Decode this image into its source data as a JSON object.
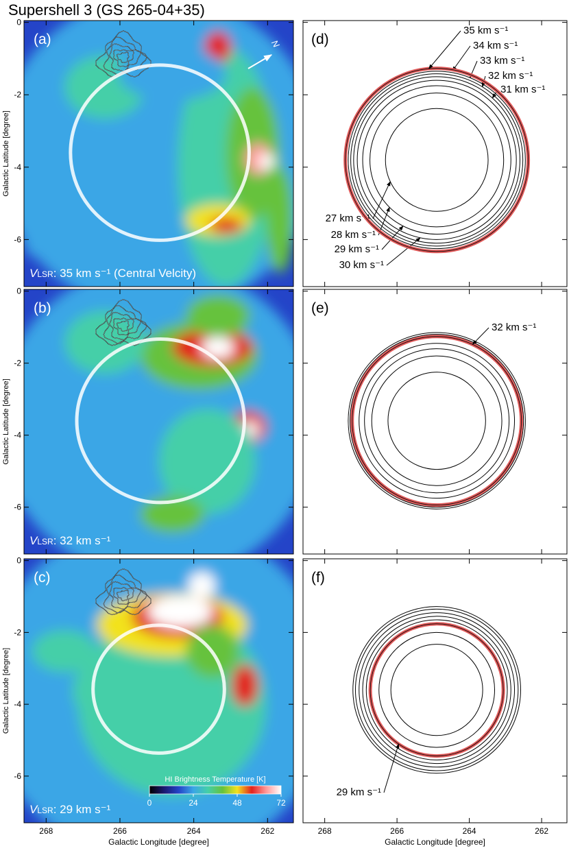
{
  "chart_data": {
    "type": "shell-maps",
    "title": "Supershell 3 (GS 265-04+35)",
    "x_label": "Galactic Longitude [degree]",
    "y_label": "Galactic Latitude [degree]",
    "xlim": [
      268.6,
      261.3
    ],
    "xticks": [
      268,
      266,
      264,
      262
    ],
    "ylim": [
      -7.3,
      0.05
    ],
    "yticks": [
      0,
      -2,
      -4,
      -6
    ],
    "north_label": "N",
    "maps": [
      {
        "label": "(a)",
        "velocity": {
          "symbol": "V",
          "subscript": "LSR",
          "text": ": 35 km s⁻¹ (Central Velcity)"
        },
        "shell": {
          "center": [
            264.92,
            -3.6
          ],
          "radius": 2.42
        }
      },
      {
        "label": "(b)",
        "velocity": {
          "symbol": "V",
          "subscript": "LSR",
          "text": ": 32 km s⁻¹"
        },
        "shell": {
          "center": [
            264.9,
            -3.6
          ],
          "radius": 2.27
        }
      },
      {
        "label": "(c)",
        "velocity": {
          "symbol": "V",
          "subscript": "LSR",
          "text": ": 29 km s⁻¹"
        },
        "shell": {
          "center": [
            264.95,
            -3.58
          ],
          "radius": 1.78
        }
      }
    ],
    "shell_color": "#ffffff",
    "colorbar": {
      "label": "HI Brightness Temperature [K]",
      "lim": [
        0,
        72
      ],
      "ticks": [
        0,
        24,
        48,
        72
      ],
      "colors": [
        "#000000",
        "#1a1a70",
        "#2444c8",
        "#3aa6e6",
        "#44cfa8",
        "#66c23c",
        "#f2e21e",
        "#e3221e",
        "#ff9a9a",
        "#ffffff"
      ]
    },
    "models": [
      {
        "label": "(d)",
        "center": [
          264.9,
          -3.8
        ],
        "shells": [
          {
            "radius": 1.42,
            "color": "#000000",
            "label": "27 km s⁻¹"
          },
          {
            "radius": 1.85,
            "color": "#000000",
            "label": "28 km s⁻¹"
          },
          {
            "radius": 2.05,
            "color": "#000000",
            "label": "29 km s⁻¹"
          },
          {
            "radius": 2.2,
            "color": "#000000",
            "label": "30 km s⁻¹"
          },
          {
            "radius": 2.3,
            "color": "#000000",
            "label": "31 km s⁻¹"
          },
          {
            "radius": 2.38,
            "color": "#000000",
            "label": "32 km s⁻¹"
          },
          {
            "radius": 2.45,
            "color": "#000000",
            "label": "33 km s⁻¹"
          },
          {
            "radius": 2.5,
            "color": "#000000",
            "label": "34 km s⁻¹"
          },
          {
            "radius": 2.53,
            "color": "#e05a5a",
            "label": "35 km s⁻¹"
          }
        ]
      },
      {
        "label": "(e)",
        "center": [
          264.9,
          -3.6
        ],
        "shells": [
          {
            "radius": 1.35,
            "color": "#000000"
          },
          {
            "radius": 1.8,
            "color": "#000000"
          },
          {
            "radius": 2.0,
            "color": "#000000"
          },
          {
            "radius": 2.15,
            "color": "#000000"
          },
          {
            "radius": 2.34,
            "color": "#e05a5a",
            "label": "32 km s⁻¹"
          },
          {
            "radius": 2.4,
            "color": "#000000"
          },
          {
            "radius": 2.45,
            "color": "#000000"
          }
        ]
      },
      {
        "label": "(f)",
        "center": [
          264.9,
          -3.6
        ],
        "shells": [
          {
            "radius": 1.27,
            "color": "#000000"
          },
          {
            "radius": 1.6,
            "color": "#000000"
          },
          {
            "radius": 1.84,
            "color": "#e05a5a",
            "label": "29 km s⁻¹"
          },
          {
            "radius": 1.95,
            "color": "#000000"
          },
          {
            "radius": 2.05,
            "color": "#000000"
          },
          {
            "radius": 2.15,
            "color": "#000000"
          },
          {
            "radius": 2.25,
            "color": "#000000"
          },
          {
            "radius": 2.32,
            "color": "#000000"
          }
        ]
      }
    ]
  }
}
